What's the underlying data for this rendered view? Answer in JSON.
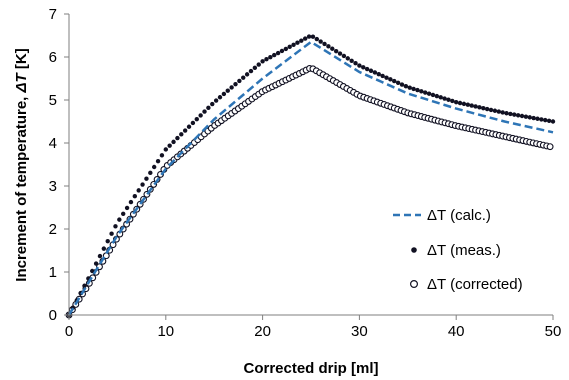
{
  "chart_data": {
    "type": "scatter",
    "xlabel": "Corrected drip [ml]",
    "ylabel_prefix": "Increment of temperature, ",
    "ylabel_symbol": "ΔT",
    "ylabel_unit": " [K]",
    "xlim": [
      0,
      50
    ],
    "ylim": [
      0,
      7
    ],
    "x_ticks": [
      "0",
      "10",
      "20",
      "30",
      "40",
      "50"
    ],
    "y_ticks": [
      "0",
      "1",
      "2",
      "3",
      "4",
      "5",
      "6",
      "7"
    ],
    "grid": false,
    "legend_position": "right",
    "series": [
      {
        "name": "ΔT (calc.)",
        "style": "dashed-line",
        "color": "#2e75b6",
        "x": [
          0,
          2,
          5,
          10,
          15,
          20,
          25,
          30,
          35,
          40,
          45,
          50
        ],
        "y": [
          0,
          0.75,
          1.85,
          3.4,
          4.55,
          5.5,
          6.35,
          5.65,
          5.15,
          4.8,
          4.5,
          4.25
        ]
      },
      {
        "name": "ΔT (meas.)",
        "style": "filled-markers",
        "color": "#111122",
        "x": [
          0,
          2,
          5,
          10,
          15,
          20,
          25,
          30,
          35,
          40,
          45,
          50
        ],
        "y": [
          0,
          0.85,
          2.15,
          3.85,
          4.95,
          5.9,
          6.5,
          5.8,
          5.3,
          4.95,
          4.7,
          4.5
        ]
      },
      {
        "name": "ΔT (corrected)",
        "style": "open-markers",
        "color": "#111122",
        "x": [
          0,
          2,
          5,
          10,
          15,
          20,
          25,
          30,
          35,
          40,
          45,
          50
        ],
        "y": [
          0,
          0.7,
          1.8,
          3.45,
          4.4,
          5.2,
          5.75,
          5.1,
          4.7,
          4.4,
          4.15,
          3.9
        ]
      }
    ]
  }
}
